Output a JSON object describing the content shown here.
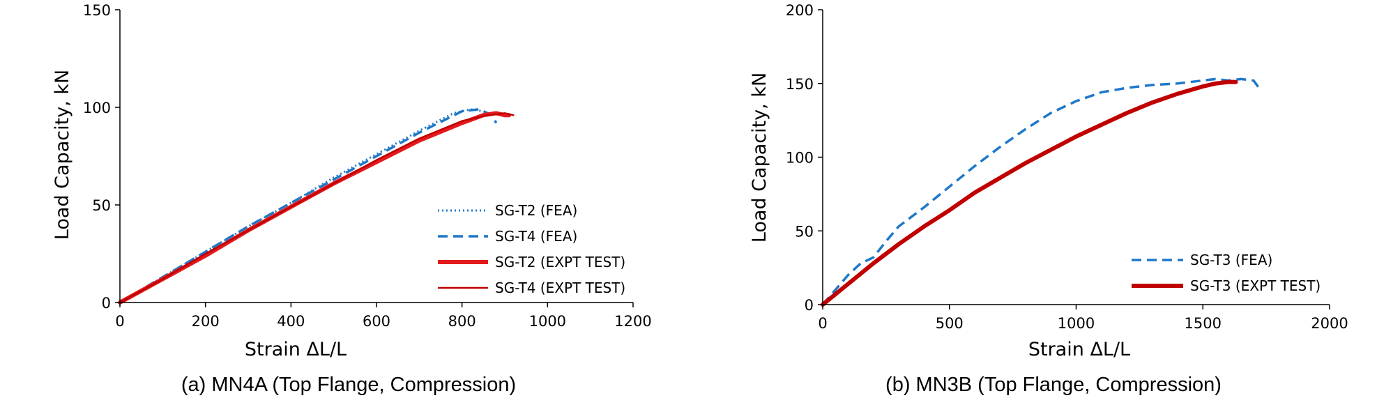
{
  "chart_data": [
    {
      "type": "line",
      "caption": "(a) MN4A (Top Flange, Compression)",
      "xlabel": "Strain ΔL/L",
      "ylabel": "Load Capacity, kN",
      "xlim": [
        0,
        1200
      ],
      "ylim": [
        0,
        150
      ],
      "xticks": [
        "0",
        "200",
        "400",
        "600",
        "800",
        "1000",
        "1200"
      ],
      "yticks": [
        "0",
        "50",
        "100",
        "150"
      ],
      "grid": false,
      "legend_position": "bottom-right",
      "series": [
        {
          "name": "SG-T2 (FEA)",
          "style": "dotted",
          "color": "#1f78c8",
          "x": [
            0,
            100,
            200,
            300,
            400,
            500,
            600,
            700,
            780,
            820,
            850
          ],
          "y": [
            0,
            13,
            26,
            39,
            51,
            64,
            76,
            88,
            97,
            99,
            98
          ]
        },
        {
          "name": "SG-T4 (FEA)",
          "style": "dashed",
          "color": "#1f78c8",
          "x": [
            0,
            100,
            200,
            300,
            400,
            500,
            600,
            700,
            800,
            840,
            870,
            880
          ],
          "y": [
            0,
            13,
            26,
            39,
            51,
            63,
            75,
            87,
            98,
            99,
            96,
            92
          ]
        },
        {
          "name": "SG-T2 (EXPT TEST)",
          "style": "thick",
          "color": "#e31a1c",
          "x": [
            0,
            100,
            200,
            300,
            400,
            500,
            600,
            700,
            800,
            850,
            880,
            900,
            910
          ],
          "y": [
            0,
            12,
            24,
            37,
            49,
            61,
            72,
            83,
            92,
            96,
            97,
            96,
            96
          ]
        },
        {
          "name": "SG-T4 (EXPT TEST)",
          "style": "thin",
          "color": "#c00000",
          "x": [
            0,
            100,
            200,
            300,
            400,
            500,
            600,
            700,
            800,
            860,
            900,
            920
          ],
          "y": [
            0,
            12,
            25,
            37,
            49,
            61,
            73,
            84,
            93,
            96,
            97,
            96
          ]
        }
      ]
    },
    {
      "type": "line",
      "caption": "(b) MN3B (Top Flange, Compression)",
      "xlabel": "Strain ΔL/L",
      "ylabel": "Load Capacity, kN",
      "xlim": [
        0,
        2000
      ],
      "ylim": [
        0,
        200
      ],
      "xticks": [
        "0",
        "500",
        "1000",
        "1500",
        "2000"
      ],
      "yticks": [
        "0",
        "50",
        "100",
        "150",
        "200"
      ],
      "grid": false,
      "legend_position": "bottom-right",
      "series": [
        {
          "name": "SG-T3 (FEA)",
          "style": "dashed",
          "color": "#1f78c8",
          "x": [
            0,
            50,
            100,
            150,
            200,
            250,
            300,
            400,
            500,
            600,
            700,
            800,
            900,
            1000,
            1100,
            1200,
            1300,
            1400,
            1500,
            1550,
            1600,
            1650,
            1700,
            1730
          ],
          "y": [
            0,
            10,
            20,
            28,
            32,
            43,
            53,
            66,
            80,
            94,
            107,
            119,
            130,
            138,
            144,
            147,
            149,
            150,
            152,
            153,
            152,
            153,
            152,
            145
          ]
        },
        {
          "name": "SG-T3 (EXPT TEST)",
          "style": "thick",
          "color": "#c00000",
          "x": [
            0,
            100,
            200,
            300,
            400,
            500,
            600,
            700,
            800,
            900,
            1000,
            1100,
            1200,
            1300,
            1400,
            1500,
            1550,
            1600,
            1630
          ],
          "y": [
            0,
            14,
            28,
            41,
            53,
            64,
            76,
            86,
            96,
            105,
            114,
            122,
            130,
            137,
            143,
            148,
            150,
            151,
            151
          ]
        }
      ]
    }
  ]
}
